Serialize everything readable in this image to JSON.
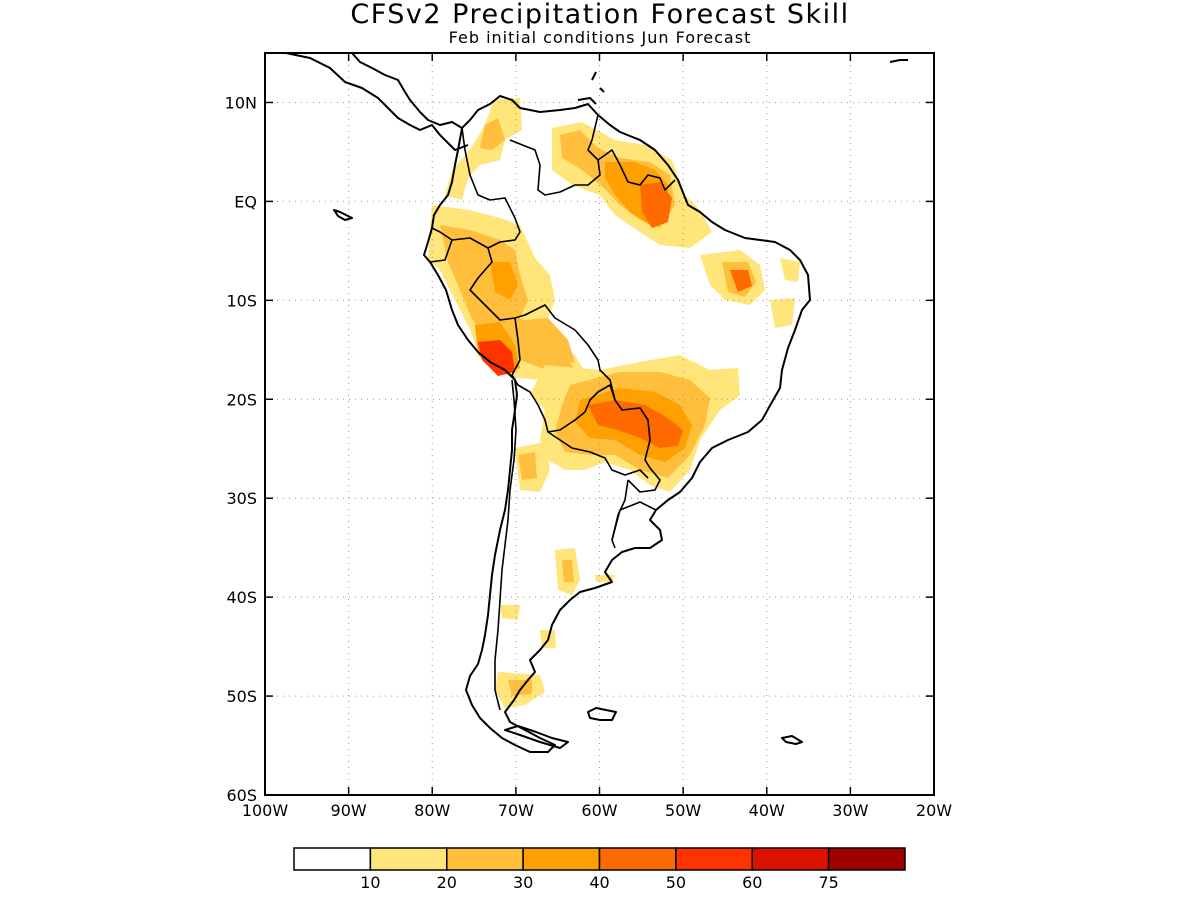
{
  "title": "CFSv2 Precipitation Forecast Skill",
  "subtitle": "Feb initial conditions  Jun Forecast",
  "map": {
    "projection": "lat-lon",
    "lon_range": [
      -100,
      -20
    ],
    "lat_range": [
      -60,
      15
    ],
    "x_tick_labels": [
      "100W",
      "90W",
      "80W",
      "70W",
      "60W",
      "50W",
      "40W",
      "30W",
      "20W"
    ],
    "x_tick_values": [
      -100,
      -90,
      -80,
      -70,
      -60,
      -50,
      -40,
      -30,
      -20
    ],
    "y_tick_labels": [
      "10N",
      "EQ",
      "10S",
      "20S",
      "30S",
      "40S",
      "50S",
      "60S"
    ],
    "y_tick_values": [
      10,
      0,
      -10,
      -20,
      -30,
      -40,
      -50,
      -60
    ],
    "grid": "dotted"
  },
  "colorbar": {
    "labels": [
      "10",
      "20",
      "30",
      "40",
      "50",
      "60",
      "75"
    ],
    "colors": [
      "#ffffff",
      "#ffe57a",
      "#ffbf3c",
      "#ffa000",
      "#ff6a00",
      "#ff3300",
      "#dd1100",
      "#a10000"
    ]
  },
  "chart_data": {
    "type": "heatmap",
    "title": "CFSv2 Precipitation Forecast Skill",
    "subtitle": "Feb initial conditions  Jun Forecast",
    "legend_placement": "bottom",
    "levels": [
      10,
      20,
      30,
      40,
      50,
      60,
      75
    ],
    "skill_regions": [
      {
        "lon": -73,
        "lat": 8,
        "class": "10-20"
      },
      {
        "lon": -62,
        "lat": 6,
        "class": "20-30"
      },
      {
        "lon": -54,
        "lat": 3,
        "class": "30-40"
      },
      {
        "lon": -51,
        "lat": 0,
        "class": "40-50"
      },
      {
        "lon": -43,
        "lat": -7,
        "class": "40-50"
      },
      {
        "lon": -78,
        "lat": -4,
        "class": "20-30"
      },
      {
        "lon": -72,
        "lat": -7,
        "class": "20-30"
      },
      {
        "lon": -73,
        "lat": -15,
        "class": "50-60"
      },
      {
        "lon": -65,
        "lat": -14,
        "class": "20-30"
      },
      {
        "lon": -56,
        "lat": -20,
        "class": "40-50"
      },
      {
        "lon": -52,
        "lat": -23,
        "class": "40-50"
      },
      {
        "lon": -68,
        "lat": -26,
        "class": "10-20"
      },
      {
        "lon": -64,
        "lat": -37,
        "class": "10-20"
      },
      {
        "lon": -70,
        "lat": -49,
        "class": "10-20"
      }
    ]
  }
}
